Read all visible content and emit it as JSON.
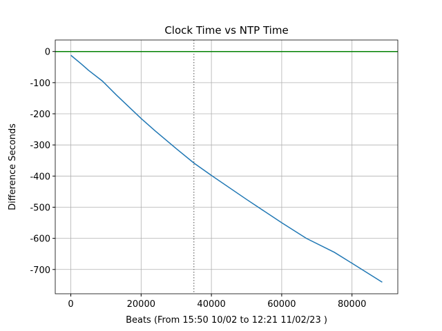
{
  "chart_data": {
    "type": "line",
    "title": "Clock Time vs NTP Time",
    "xlabel": "Beats (From 15:50 10/02 to 12:21 11/02/23 )",
    "ylabel": "Difference Seconds",
    "x": [
      0,
      3000,
      5000,
      9000,
      13000,
      20000,
      24000,
      30000,
      35000,
      40000,
      50000,
      60000,
      67000,
      75000,
      80000,
      88600
    ],
    "series": [
      {
        "name": "difference",
        "color": "#1f77b4",
        "values": [
          -12,
          -40,
          -60,
          -95,
          -140,
          -215,
          -255,
          -312,
          -358,
          -398,
          -475,
          -550,
          -600,
          -645,
          -680,
          -741
        ]
      }
    ],
    "hlines": [
      {
        "value": 0,
        "color": "#008000"
      }
    ],
    "vlines": [
      {
        "value": 35000,
        "color": "#808080",
        "style": "dotted"
      }
    ],
    "xlim": [
      -4430,
      93030
    ],
    "xticks": [
      0,
      20000,
      40000,
      60000,
      80000
    ],
    "ylim": [
      -778,
      37
    ],
    "yticks": [
      0,
      -100,
      -200,
      -300,
      -400,
      -500,
      -600,
      -700
    ],
    "grid": true
  }
}
